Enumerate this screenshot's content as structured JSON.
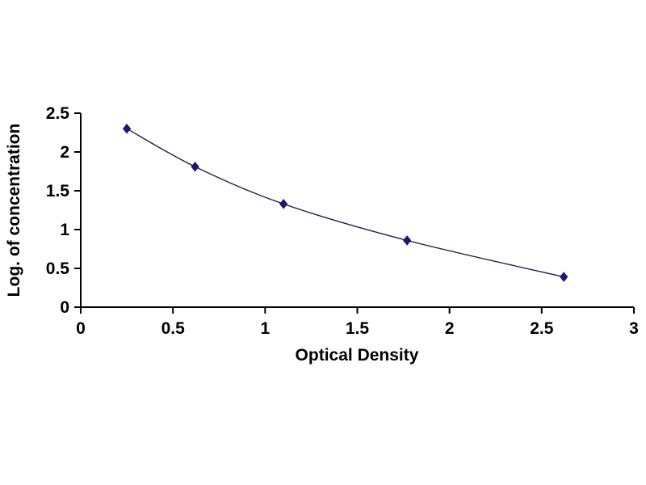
{
  "chart_data": {
    "type": "scatter",
    "title": "",
    "xlabel": "Optical Density",
    "ylabel": "Log. of concentration",
    "x": [
      0.25,
      0.62,
      1.1,
      1.77,
      2.62
    ],
    "y": [
      2.3,
      1.81,
      1.33,
      0.86,
      0.39
    ],
    "xlim": [
      0,
      3
    ],
    "ylim": [
      0,
      2.5
    ],
    "xticks": [
      0,
      0.5,
      1,
      1.5,
      2,
      2.5,
      3
    ],
    "yticks": [
      0,
      0.5,
      1,
      1.5,
      2,
      2.5
    ],
    "grid": false,
    "legend": "none",
    "marker": "diamond",
    "colors": {
      "line": "#1f1f4e",
      "marker": "#191970",
      "axis": "#000000",
      "text": "#000000",
      "background": "#ffffff"
    }
  }
}
